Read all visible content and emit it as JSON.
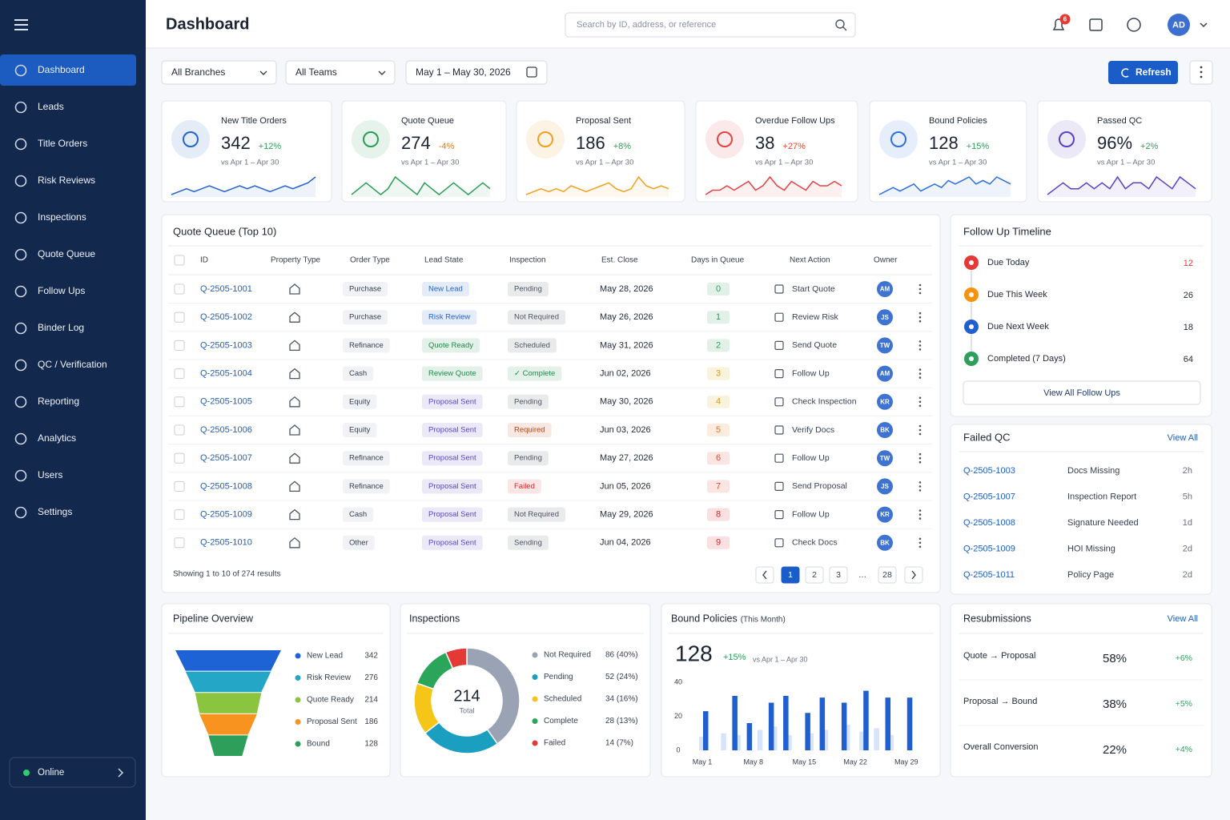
{
  "sidebar": {
    "nav": [
      "Dashboard",
      "Leads",
      "Title Orders",
      "Risk Reviews",
      "Inspections",
      "Quote Queue",
      "Follow Ups",
      "Binder Log",
      "QC / Verification",
      "Reporting",
      "Analytics",
      "Users",
      "Settings"
    ],
    "status": "Online"
  },
  "header": {
    "title": "Dashboard",
    "search_placeholder": "Search by ID, address, or reference",
    "notifications": 6,
    "avatar": "AD"
  },
  "filters": {
    "branch": "All Branches",
    "team": "All Teams",
    "date_range": "May 1 – May 30, 2026",
    "refresh": "Refresh"
  },
  "kpis": [
    {
      "label": "New Title Orders",
      "value": "342",
      "change": "+12%",
      "change_color": "#2e9e5b",
      "period": "vs Apr 1 – Apr 30",
      "color": "#2563c9",
      "trend": [
        3,
        4,
        5,
        4,
        5,
        6,
        5,
        4,
        5,
        6,
        5,
        6,
        5,
        4,
        5,
        6,
        5,
        6,
        7,
        9
      ]
    },
    {
      "label": "Quote Queue",
      "value": "274",
      "change": "-4%",
      "change_color": "#e07b1f",
      "period": "vs Apr 1 – Apr 30",
      "color": "#2a9d55",
      "trend": [
        4,
        5,
        6,
        5,
        4,
        5,
        7,
        6,
        5,
        4,
        6,
        5,
        4,
        5,
        6,
        5,
        4,
        5,
        6,
        5
      ]
    },
    {
      "label": "Proposal Sent",
      "value": "186",
      "change": "+8%",
      "change_color": "#2e9e5b",
      "period": "vs Apr 1 – Apr 30",
      "color": "#f0a020",
      "trend": [
        3,
        4,
        5,
        4,
        5,
        4,
        6,
        5,
        4,
        5,
        6,
        7,
        5,
        4,
        5,
        9,
        6,
        5,
        6,
        5
      ]
    },
    {
      "label": "Overdue Follow Ups",
      "value": "38",
      "change": "+27%",
      "change_color": "#e5482f",
      "period": "vs Apr 1 – Apr 30",
      "color": "#e04444",
      "trend": [
        4,
        5,
        5,
        6,
        5,
        6,
        7,
        5,
        6,
        8,
        6,
        5,
        7,
        6,
        5,
        7,
        6,
        6,
        7,
        6
      ]
    },
    {
      "label": "Bound Policies",
      "value": "128",
      "change": "+15%",
      "change_color": "#2e9e5b",
      "period": "vs Apr 1 – Apr 30",
      "color": "#2f6fdc",
      "trend": [
        3,
        4,
        5,
        4,
        5,
        6,
        4,
        5,
        6,
        5,
        7,
        6,
        7,
        8,
        6,
        7,
        6,
        8,
        7,
        6
      ]
    },
    {
      "label": "Passed QC",
      "value": "96%",
      "change": "+2%",
      "change_color": "#2e9e5b",
      "period": "vs Apr 1 – Apr 30",
      "color": "#5b3fc4",
      "trend": [
        4,
        5,
        6,
        5,
        5,
        6,
        5,
        6,
        5,
        7,
        5,
        6,
        6,
        5,
        7,
        6,
        5,
        7,
        6,
        5
      ]
    }
  ],
  "quote_queue": {
    "title": "Quote Queue (Top 10)",
    "columns": [
      "ID",
      "Property Type",
      "Order Type",
      "Lead State",
      "Inspection",
      "Est. Close",
      "Days in Queue",
      "Next Action",
      "Owner"
    ],
    "rows": [
      {
        "id": "Q-2505-1001",
        "order_type": "Purchase",
        "lead_state": "New Lead",
        "lead_color": "#2463c9",
        "inspection": "Pending",
        "inspection_color": "#4b5563",
        "est_close": "May 28, 2026",
        "days": "0",
        "days_color": "#2e9e5b",
        "next_action": "Start Quote",
        "owner": "AM"
      },
      {
        "id": "Q-2505-1002",
        "order_type": "Purchase",
        "lead_state": "Risk Review",
        "lead_color": "#2463c9",
        "inspection": "Not Required",
        "inspection_color": "#4b5563",
        "est_close": "May 26, 2026",
        "days": "1",
        "days_color": "#2e9e5b",
        "next_action": "Review Risk",
        "owner": "JS"
      },
      {
        "id": "Q-2505-1003",
        "order_type": "Refinance",
        "lead_state": "Quote Ready",
        "lead_color": "#1f8a4c",
        "inspection": "Scheduled",
        "inspection_color": "#4b5563",
        "est_close": "May 31, 2026",
        "days": "2",
        "days_color": "#2e9e5b",
        "next_action": "Send Quote",
        "owner": "TW"
      },
      {
        "id": "Q-2505-1004",
        "order_type": "Cash",
        "lead_state": "Review Quote",
        "lead_color": "#1f8a4c",
        "inspection": "✓ Complete",
        "inspection_color": "#1f8a4c",
        "est_close": "Jun 02, 2026",
        "days": "3",
        "days_color": "#d4a010",
        "next_action": "Follow Up",
        "owner": "AM"
      },
      {
        "id": "Q-2505-1005",
        "order_type": "Equity",
        "lead_state": "Proposal Sent",
        "lead_color": "#5b47c2",
        "inspection": "Pending",
        "inspection_color": "#4b5563",
        "est_close": "May 30, 2026",
        "days": "4",
        "days_color": "#d4a010",
        "next_action": "Check Inspection",
        "owner": "KR"
      },
      {
        "id": "Q-2505-1006",
        "order_type": "Equity",
        "lead_state": "Proposal Sent",
        "lead_color": "#5b47c2",
        "inspection": "Required",
        "inspection_color": "#c2410c",
        "est_close": "Jun 03, 2026",
        "days": "5",
        "days_color": "#e07b1f",
        "next_action": "Verify Docs",
        "owner": "BK"
      },
      {
        "id": "Q-2505-1007",
        "order_type": "Refinance",
        "lead_state": "Proposal Sent",
        "lead_color": "#5b47c2",
        "inspection": "Pending",
        "inspection_color": "#4b5563",
        "est_close": "May 27, 2026",
        "days": "6",
        "days_color": "#e5482f",
        "next_action": "Follow Up",
        "owner": "TW"
      },
      {
        "id": "Q-2505-1008",
        "order_type": "Refinance",
        "lead_state": "Proposal Sent",
        "lead_color": "#5b47c2",
        "inspection": "Failed",
        "inspection_color": "#dc2626",
        "est_close": "Jun 05, 2026",
        "days": "7",
        "days_color": "#e5482f",
        "next_action": "Send Proposal",
        "owner": "JS"
      },
      {
        "id": "Q-2505-1009",
        "order_type": "Cash",
        "lead_state": "Proposal Sent",
        "lead_color": "#5b47c2",
        "inspection": "Not Required",
        "inspection_color": "#4b5563",
        "est_close": "May 29, 2026",
        "days": "8",
        "days_color": "#dc2626",
        "next_action": "Follow Up",
        "owner": "KR"
      },
      {
        "id": "Q-2505-1010",
        "order_type": "Other",
        "lead_state": "Proposal Sent",
        "lead_color": "#5b47c2",
        "inspection": "Sending",
        "inspection_color": "#4b5563",
        "est_close": "Jun 04, 2026",
        "days": "9",
        "days_color": "#dc2626",
        "next_action": "Check Docs",
        "owner": "BK"
      }
    ],
    "summary": "Showing 1 to 10 of 274 results",
    "pages": [
      1,
      2,
      3,
      "…",
      28
    ]
  },
  "follow_up_timeline": {
    "title": "Follow Up Timeline",
    "items": [
      {
        "label": "Due Today",
        "count": 12,
        "color": "#e53935",
        "count_color": "#e53935"
      },
      {
        "label": "Due This Week",
        "count": 26,
        "color": "#f5930e",
        "count_color": "#1f2937"
      },
      {
        "label": "Due Next Week",
        "count": 18,
        "color": "#1f5fcf",
        "count_color": "#1f2937"
      },
      {
        "label": "Completed (7 Days)",
        "count": 64,
        "color": "#2e9e5b",
        "count_color": "#1f2937"
      }
    ],
    "button": "View All Follow Ups"
  },
  "failed_qc": {
    "title": "Failed QC",
    "link": "View All",
    "rows": [
      {
        "id": "Q-2505-1003",
        "issue": "Docs Missing",
        "age": "2h"
      },
      {
        "id": "Q-2505-1007",
        "issue": "Inspection Report",
        "age": "5h"
      },
      {
        "id": "Q-2505-1008",
        "issue": "Signature Needed",
        "age": "1d"
      },
      {
        "id": "Q-2505-1009",
        "issue": "HOI Missing",
        "age": "2d"
      },
      {
        "id": "Q-2505-1011",
        "issue": "Policy Page",
        "age": "2d"
      }
    ]
  },
  "pipeline": {
    "type": "funnel",
    "title": "Pipeline Overview",
    "items": [
      {
        "name": "New Lead",
        "value": 342,
        "color": "#1e63d6"
      },
      {
        "name": "Risk Review",
        "value": 276,
        "color": "#24a7c7"
      },
      {
        "name": "Quote Ready",
        "value": 214,
        "color": "#8bc53f"
      },
      {
        "name": "Proposal Sent",
        "value": 186,
        "color": "#f7931e"
      },
      {
        "name": "Bound",
        "value": 128,
        "color": "#2e9e5b"
      }
    ]
  },
  "inspections": {
    "type": "donut",
    "title": "Inspections",
    "total": 214,
    "total_label": "Total",
    "items": [
      {
        "name": "Not Required",
        "value": 86,
        "value_label": "86 (40%)",
        "color": "#9aa3b4"
      },
      {
        "name": "Pending",
        "value": 52,
        "value_label": "52 (24%)",
        "color": "#1a9fc0"
      },
      {
        "name": "Scheduled",
        "value": 34,
        "value_label": "34 (16%)",
        "color": "#f5c518"
      },
      {
        "name": "Complete",
        "value": 28,
        "value_label": "28 (13%)",
        "color": "#2aa55a"
      },
      {
        "name": "Failed",
        "value": 14,
        "value_label": "14 (7%)",
        "color": "#e53935"
      }
    ]
  },
  "bound_policies": {
    "type": "bar",
    "title": "Bound Policies",
    "subtitle": "(This Month)",
    "value": "128",
    "change": "+15%",
    "period": "vs Apr 1 – Apr 30",
    "categories": [
      "May 1",
      null,
      null,
      null,
      null,
      null,
      null,
      "May 8",
      null,
      null,
      null,
      null,
      null,
      null,
      "May 15",
      null,
      null,
      null,
      null,
      null,
      null,
      "May 22",
      null,
      null,
      null,
      null,
      null,
      null,
      "May 29"
    ],
    "series": [
      {
        "color": "#d6e3fb",
        "values": [
          8,
          null,
          null,
          10,
          null,
          9,
          null,
          null,
          12,
          null,
          14,
          null,
          9,
          null,
          null,
          10,
          null,
          12,
          null,
          null,
          15,
          null,
          11,
          null,
          13,
          null,
          9,
          null,
          null
        ]
      },
      {
        "color": "#1f5fcf",
        "values": [
          23,
          null,
          null,
          null,
          32,
          null,
          16,
          null,
          null,
          28,
          null,
          32,
          null,
          null,
          22,
          null,
          31,
          null,
          null,
          28,
          null,
          null,
          35,
          null,
          null,
          31,
          null,
          null,
          31
        ]
      }
    ],
    "ylim": [
      0,
      40
    ],
    "yticks": [
      0,
      20,
      40
    ],
    "grid": false
  },
  "resubmissions": {
    "title": "Resubmissions",
    "link": "View All",
    "rows": [
      {
        "label": "Quote → Proposal",
        "value": "58%",
        "change": "+6%"
      },
      {
        "label": "Proposal → Bound",
        "value": "38%",
        "change": "+5%"
      },
      {
        "label": "Overall Conversion",
        "value": "22%",
        "change": "+4%"
      }
    ]
  }
}
